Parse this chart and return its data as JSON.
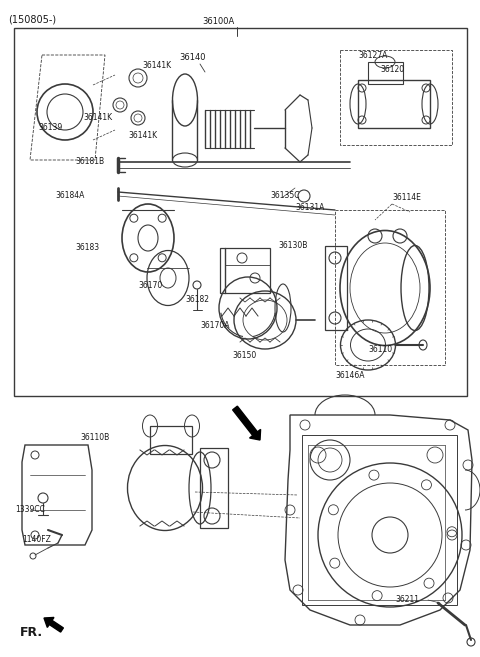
{
  "bg_color": "#ffffff",
  "line_color": "#3a3a3a",
  "text_color": "#1a1a1a",
  "fig_width": 4.8,
  "fig_height": 6.57,
  "dpi": 100,
  "title": "(150805-)",
  "label_36100A": "36100A",
  "label_36141K": "36141K",
  "label_36139": "36139",
  "label_36140": "36140",
  "label_36127A": "36127A",
  "label_36120": "36120",
  "label_36181B": "36181B",
  "label_36184A": "36184A",
  "label_36183": "36183",
  "label_36170": "36170",
  "label_36182": "36182",
  "label_36170A": "36170A",
  "label_36135C": "36135C",
  "label_36131A": "36131A",
  "label_36130B": "36130B",
  "label_36150": "36150",
  "label_36114E": "36114E",
  "label_36110": "36110",
  "label_36146A": "36146A",
  "label_36110B": "36110B",
  "label_1339CC": "1339CC",
  "label_1140FZ": "1140FZ",
  "label_36211": "36211",
  "label_FR": "FR."
}
